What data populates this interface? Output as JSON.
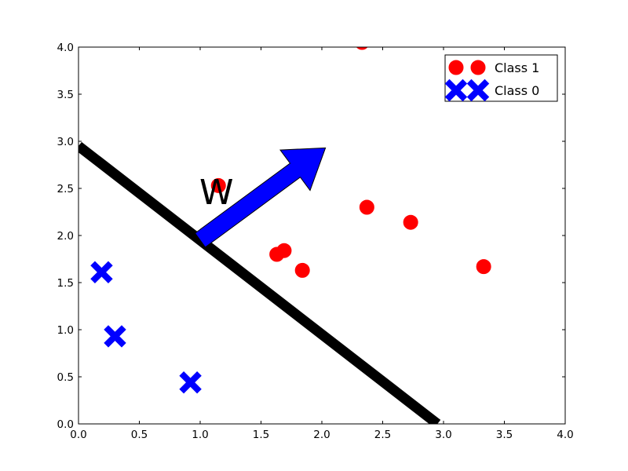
{
  "chart_data": {
    "type": "scatter",
    "title": "",
    "xlabel": "",
    "ylabel": "",
    "xlim": [
      0,
      4
    ],
    "ylim": [
      0,
      4
    ],
    "grid": false,
    "x_ticks": [
      0.0,
      0.5,
      1.0,
      1.5,
      2.0,
      2.5,
      3.0,
      3.5,
      4.0
    ],
    "y_ticks": [
      0.0,
      0.5,
      1.0,
      1.5,
      2.0,
      2.5,
      3.0,
      3.5,
      4.0
    ],
    "x_tick_labels": [
      "0.0",
      "0.5",
      "1.0",
      "1.5",
      "2.0",
      "2.5",
      "3.0",
      "3.5",
      "4.0"
    ],
    "y_tick_labels": [
      "0.0",
      "0.5",
      "1.0",
      "1.5",
      "2.0",
      "2.5",
      "3.0",
      "3.5",
      "4.0"
    ],
    "legend_position": "top-right",
    "series": [
      {
        "name": "Class 1",
        "marker": "circle",
        "color": "#ff0000",
        "x": [
          1.15,
          1.63,
          1.69,
          1.84,
          2.37,
          2.73,
          3.33,
          2.33
        ],
        "y": [
          2.53,
          1.8,
          1.84,
          1.63,
          2.3,
          2.14,
          1.67,
          4.05
        ]
      },
      {
        "name": "Class 0",
        "marker": "x",
        "color": "#0000ff",
        "x": [
          0.19,
          0.3,
          0.92
        ],
        "y": [
          1.61,
          0.93,
          0.44
        ]
      }
    ],
    "decision_boundary": {
      "color": "#000000",
      "x": [
        0.0,
        2.95
      ],
      "y": [
        2.95,
        0.0
      ]
    },
    "weight_arrow": {
      "label": "W",
      "color": "#0000ff",
      "from": [
        1.0,
        1.95
      ],
      "to": [
        2.03,
        2.93
      ]
    }
  }
}
